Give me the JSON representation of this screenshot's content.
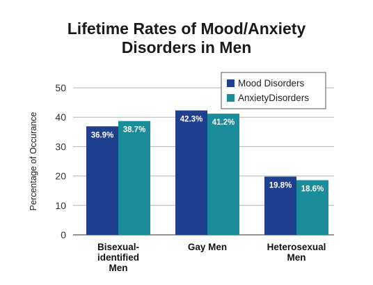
{
  "chart_data": {
    "type": "bar",
    "title_lines": [
      "Lifetime Rates of Mood/Anxiety",
      "Disorders in Men"
    ],
    "ylabel": "Percentage of Occurance",
    "ylim": [
      0,
      50
    ],
    "yticks": [
      0,
      10,
      20,
      30,
      40,
      50
    ],
    "categories": [
      [
        "Bisexual-",
        "identified",
        "Men"
      ],
      [
        "Gay Men"
      ],
      [
        "Heterosexual",
        "Men"
      ]
    ],
    "series": [
      {
        "name": "Mood Disorders",
        "color": "#1f3f8f",
        "values": [
          36.9,
          42.3,
          19.8
        ],
        "labels": [
          "36.9%",
          "42.3%",
          "19.8%"
        ]
      },
      {
        "name": "AnxietyDisorders",
        "color": "#1a8c9a",
        "values": [
          38.7,
          41.2,
          18.6
        ],
        "labels": [
          "38.7%",
          "41.2%",
          "18.6%"
        ]
      }
    ],
    "grid": true,
    "legend": "top-right"
  }
}
